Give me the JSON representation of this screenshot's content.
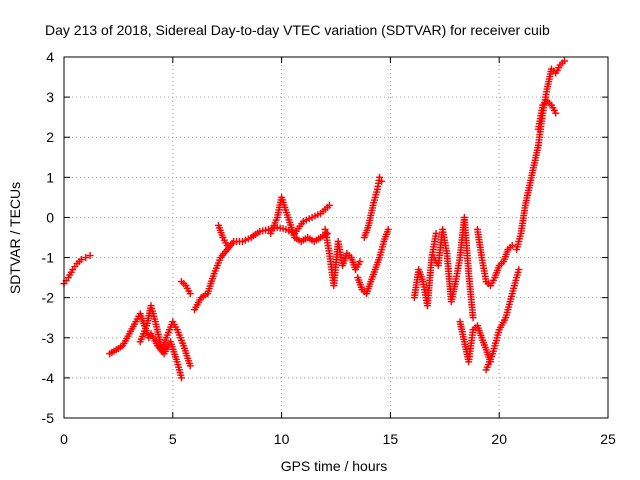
{
  "chart_data": {
    "type": "scatter",
    "title": "Day 213 of 2018, Sidereal Day-to-day VTEC variation (SDTVAR) for receiver cuib",
    "xlabel": "GPS time / hours",
    "ylabel": "SDTVAR / TECUs",
    "xlim": [
      0,
      25
    ],
    "ylim": [
      -5,
      4
    ],
    "xticks": [
      0,
      5,
      10,
      15,
      20,
      25
    ],
    "yticks": [
      -5,
      -4,
      -3,
      -2,
      -1,
      0,
      1,
      2,
      3,
      4
    ],
    "grid": true,
    "legend": "none",
    "marker": "+",
    "color": "#ff0000",
    "series": [
      {
        "x": [
          0.0,
          0.2,
          0.4,
          0.6,
          0.8,
          1.0,
          1.2
        ],
        "y": [
          -1.65,
          -1.5,
          -1.3,
          -1.15,
          -1.05,
          -1.0,
          -0.95
        ]
      },
      {
        "x": [
          2.1,
          2.4,
          2.7,
          3.0,
          3.3,
          3.5,
          3.7,
          3.9
        ],
        "y": [
          -3.4,
          -3.3,
          -3.2,
          -2.9,
          -2.6,
          -2.4,
          -2.7,
          -3.0
        ]
      },
      {
        "x": [
          3.5,
          3.8,
          4.0,
          4.2,
          4.5,
          4.7,
          5.0,
          5.2,
          5.5,
          5.8
        ],
        "y": [
          -3.1,
          -2.7,
          -2.2,
          -2.6,
          -3.3,
          -3.0,
          -2.6,
          -2.8,
          -3.2,
          -3.7
        ]
      },
      {
        "x": [
          4.0,
          4.3,
          4.6,
          4.9,
          5.2,
          5.4
        ],
        "y": [
          -2.9,
          -3.2,
          -3.4,
          -3.1,
          -3.6,
          -4.0
        ]
      },
      {
        "x": [
          5.4,
          5.6,
          5.8
        ],
        "y": [
          -1.6,
          -1.7,
          -1.9
        ]
      },
      {
        "x": [
          6.0,
          6.3,
          6.6,
          6.9,
          7.2,
          7.5,
          7.8,
          8.2,
          8.6,
          9.0,
          9.4,
          9.8,
          10.2,
          10.6,
          11.0,
          11.4,
          11.8,
          12.2
        ],
        "y": [
          -2.3,
          -2.0,
          -1.9,
          -1.4,
          -1.0,
          -0.8,
          -0.6,
          -0.6,
          -0.5,
          -0.35,
          -0.3,
          -0.25,
          -0.3,
          -0.4,
          -0.1,
          0.0,
          0.1,
          0.3
        ]
      },
      {
        "x": [
          7.1,
          7.3,
          7.5
        ],
        "y": [
          -0.2,
          -0.5,
          -0.7
        ]
      },
      {
        "x": [
          9.5,
          9.8,
          10.0,
          10.3,
          10.6,
          10.9,
          11.2,
          11.5,
          11.8,
          12.1
        ],
        "y": [
          -0.4,
          0.0,
          0.5,
          0.0,
          -0.5,
          -0.6,
          -0.5,
          -0.6,
          -0.5,
          -0.4
        ]
      },
      {
        "x": [
          12.0,
          12.2,
          12.4,
          12.6,
          12.8,
          13.0,
          13.2,
          13.4,
          13.6
        ],
        "y": [
          -0.3,
          -0.9,
          -1.7,
          -0.6,
          -1.2,
          -0.9,
          -1.0,
          -1.3,
          -1.1
        ]
      },
      {
        "x": [
          13.5,
          13.7,
          13.9,
          14.1,
          14.3,
          14.5,
          14.7,
          14.9
        ],
        "y": [
          -1.5,
          -1.8,
          -1.9,
          -1.6,
          -1.3,
          -1.0,
          -0.6,
          -0.3
        ]
      },
      {
        "x": [
          13.8,
          14.0,
          14.2,
          14.4,
          14.5,
          14.6
        ],
        "y": [
          -0.5,
          -0.2,
          0.3,
          0.7,
          1.0,
          0.9
        ]
      },
      {
        "x": [
          16.1,
          16.3,
          16.5,
          16.7,
          16.9,
          17.1
        ],
        "y": [
          -2.0,
          -1.3,
          -1.6,
          -2.2,
          -1.0,
          -0.4
        ]
      },
      {
        "x": [
          17.0,
          17.2,
          17.4,
          17.6,
          17.8,
          18.0,
          18.2,
          18.4,
          18.6,
          18.8
        ],
        "y": [
          -1.0,
          -1.2,
          -0.3,
          -0.9,
          -2.1,
          -1.6,
          -1.0,
          0.0,
          -1.4,
          -2.5
        ]
      },
      {
        "x": [
          18.2,
          18.4,
          18.6,
          18.8,
          19.0,
          19.2,
          19.4,
          19.6
        ],
        "y": [
          -2.6,
          -3.1,
          -3.6,
          -2.8,
          -2.7,
          -3.0,
          -3.3,
          -3.6
        ]
      },
      {
        "x": [
          19.0,
          19.2,
          19.4,
          19.6,
          19.8,
          20.0,
          20.2,
          20.4,
          20.6
        ],
        "y": [
          -0.3,
          -1.0,
          -1.6,
          -1.7,
          -1.5,
          -1.2,
          -1.1,
          -0.8,
          -0.7
        ]
      },
      {
        "x": [
          19.4,
          19.7,
          20.0,
          20.3,
          20.5,
          20.7,
          20.9
        ],
        "y": [
          -3.8,
          -3.4,
          -2.8,
          -2.5,
          -2.1,
          -1.7,
          -1.3
        ]
      },
      {
        "x": [
          20.8,
          21.0,
          21.2,
          21.4,
          21.6,
          21.8,
          22.0,
          22.2,
          22.4,
          22.6,
          22.8,
          23.0
        ],
        "y": [
          -0.8,
          -0.4,
          0.3,
          0.8,
          1.3,
          1.8,
          2.6,
          3.2,
          3.7,
          3.6,
          3.8,
          3.9
        ]
      },
      {
        "x": [
          21.8,
          22.0,
          22.2,
          22.4,
          22.6
        ],
        "y": [
          2.2,
          2.8,
          2.9,
          2.8,
          2.6
        ]
      }
    ]
  }
}
